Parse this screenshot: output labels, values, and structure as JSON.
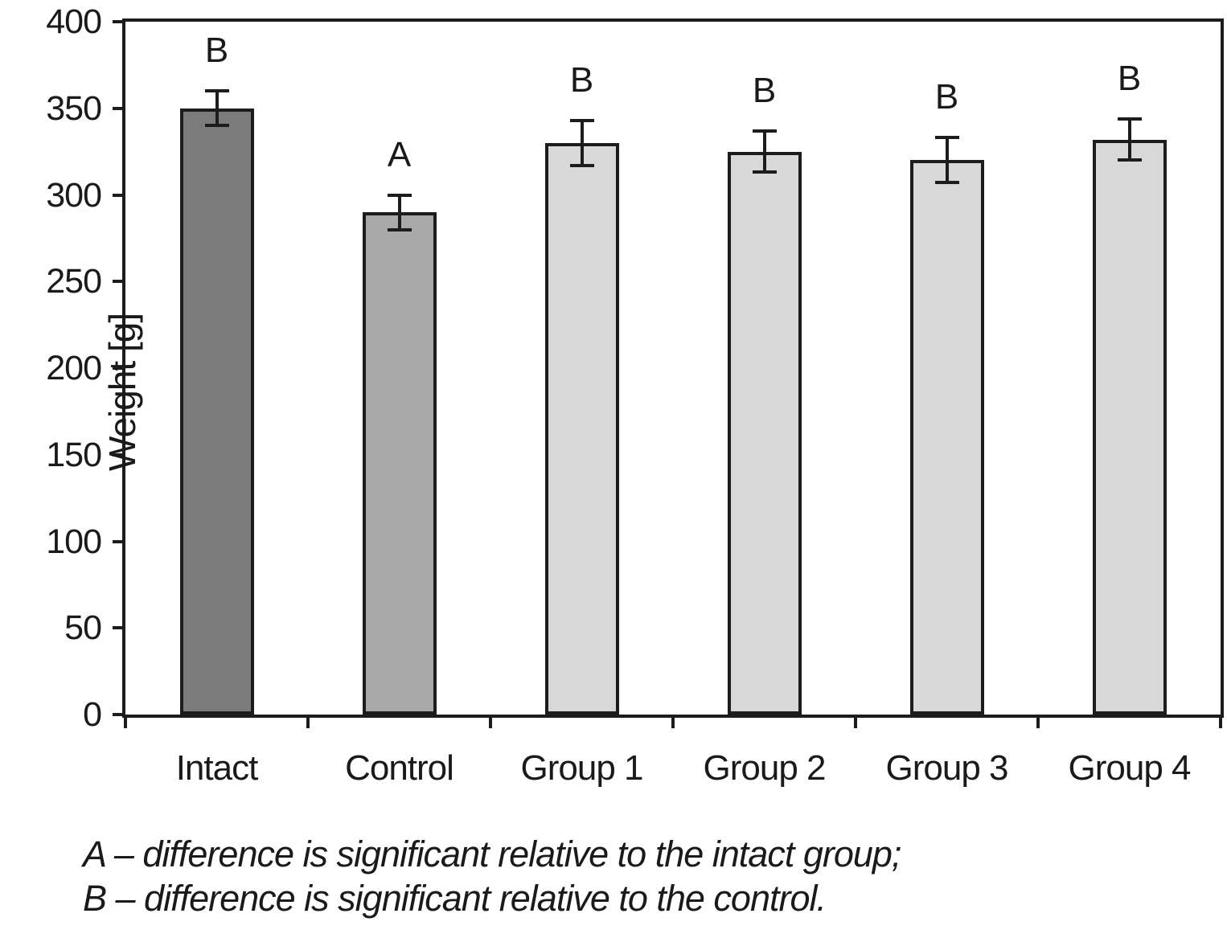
{
  "figure": {
    "y_axis_title": "Weight [g]",
    "footnotes": [
      "A – difference is significant relative to the intact group;",
      "B – difference is significant relative to the control."
    ]
  },
  "chart_data": {
    "type": "bar",
    "title": "",
    "xlabel": "",
    "ylabel": "Weight [g]",
    "categories": [
      "Intact",
      "Control",
      "Group 1",
      "Group 2",
      "Group 3",
      "Group 4"
    ],
    "values": [
      350,
      290,
      330,
      325,
      320,
      332
    ],
    "error_bars": [
      10,
      10,
      13,
      12,
      13,
      12
    ],
    "significance_labels": [
      "B",
      "A",
      "B",
      "B",
      "B",
      "B"
    ],
    "bar_colors": [
      "#7b7b7b",
      "#a9a9a9",
      "#d8d8d8",
      "#d8d8d8",
      "#d8d8d8",
      "#d8d8d8"
    ],
    "bar_border_color": "#1c1c1c",
    "ylim": [
      0,
      400
    ],
    "ytick_step": 50,
    "grid": false,
    "legend_position": "none",
    "frame": "full-box",
    "annotations_meaning": {
      "A": "difference is significant relative to the intact group",
      "B": "difference is significant relative to the control"
    }
  }
}
